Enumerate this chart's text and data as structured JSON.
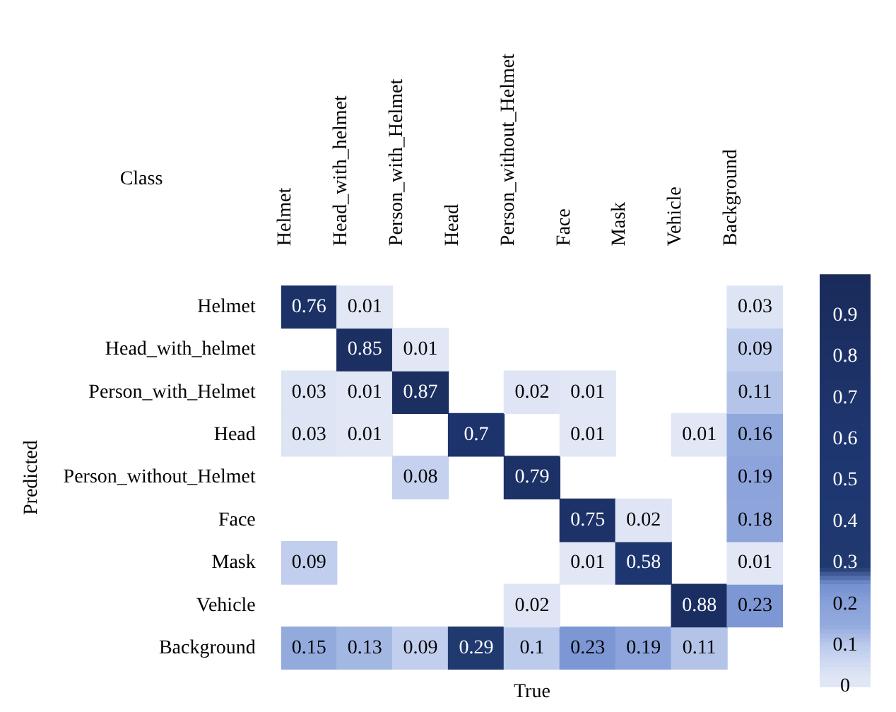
{
  "chart_data": {
    "type": "heatmap",
    "xlabel": "True",
    "ylabel": "Predicted",
    "annotations": [
      "Class"
    ],
    "categories": [
      "Helmet",
      "Head_with_helmet",
      "Person_with_Helmet",
      "Head",
      "Person_without_Helmet",
      "Face",
      "Mask",
      "Vehicle",
      "Background"
    ],
    "y_categories": [
      "Helmet",
      "Head_with_helmet",
      "Person_with_Helmet",
      "Head",
      "Person_without_Helmet",
      "Face",
      "Mask",
      "Vehicle",
      "Background"
    ],
    "cells": [
      [
        0.76,
        0.01,
        null,
        null,
        null,
        null,
        null,
        null,
        0.03
      ],
      [
        null,
        0.85,
        0.01,
        null,
        null,
        null,
        null,
        null,
        0.09
      ],
      [
        0.03,
        0.01,
        0.87,
        null,
        0.02,
        0.01,
        null,
        null,
        0.11
      ],
      [
        0.03,
        0.01,
        null,
        0.7,
        null,
        0.01,
        null,
        0.01,
        0.16
      ],
      [
        null,
        null,
        0.08,
        null,
        0.79,
        null,
        null,
        null,
        0.19
      ],
      [
        null,
        null,
        null,
        null,
        null,
        0.75,
        0.02,
        null,
        0.18
      ],
      [
        0.09,
        null,
        null,
        null,
        null,
        0.01,
        0.58,
        null,
        0.01
      ],
      [
        null,
        null,
        null,
        null,
        0.02,
        null,
        null,
        0.88,
        0.23
      ],
      [
        0.15,
        0.13,
        0.09,
        0.29,
        0.1,
        0.23,
        0.19,
        0.11,
        null
      ]
    ],
    "clim": [
      0,
      1
    ],
    "cticks": [
      0,
      0.1,
      0.2,
      0.3,
      0.4,
      0.5,
      0.6,
      0.7,
      0.8,
      0.9
    ],
    "data_labels": true
  }
}
